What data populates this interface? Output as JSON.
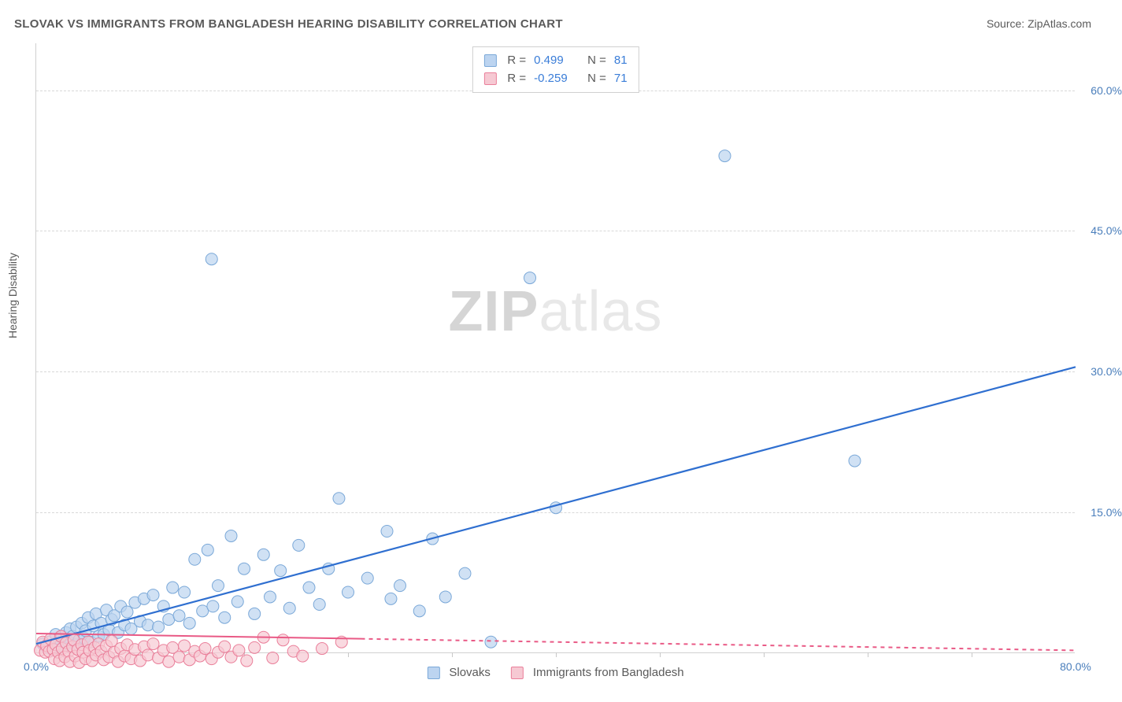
{
  "title": "SLOVAK VS IMMIGRANTS FROM BANGLADESH HEARING DISABILITY CORRELATION CHART",
  "source_prefix": "Source: ",
  "source_name": "ZipAtlas.com",
  "y_axis_label": "Hearing Disability",
  "watermark_bold": "ZIP",
  "watermark_light": "atlas",
  "chart": {
    "type": "scatter",
    "background_color": "#ffffff",
    "grid_color": "#d8d8d8",
    "border_color": "#d0d0d0",
    "xlim": [
      0,
      80
    ],
    "ylim": [
      0,
      65
    ],
    "x_ticks": [
      {
        "v": 0,
        "label": "0.0%"
      },
      {
        "v": 80,
        "label": "80.0%"
      }
    ],
    "x_minor_ticks": [
      8,
      16,
      24,
      32,
      40,
      48,
      56,
      64,
      72
    ],
    "y_ticks": [
      {
        "v": 15,
        "label": "15.0%"
      },
      {
        "v": 30,
        "label": "30.0%"
      },
      {
        "v": 45,
        "label": "45.0%"
      },
      {
        "v": 60,
        "label": "60.0%"
      }
    ],
    "tick_label_color": "#4a7ebb",
    "tick_fontsize": 14,
    "series": [
      {
        "key": "slovaks",
        "label": "Slovaks",
        "R": "0.499",
        "N": "81",
        "marker_fill": "#bcd4f0",
        "marker_stroke": "#7aa8d8",
        "marker_opacity": 0.7,
        "marker_radius": 7.5,
        "line_color": "#2f6fd0",
        "line_width": 2.2,
        "line_dash": "",
        "line_from": {
          "x": 0,
          "y": 1.0
        },
        "line_to": {
          "x": 80,
          "y": 30.5
        },
        "line_solid_until_x": 80,
        "points": [
          {
            "x": 0.5,
            "y": 1.0
          },
          {
            "x": 0.8,
            "y": 0.6
          },
          {
            "x": 1.0,
            "y": 1.2
          },
          {
            "x": 1.2,
            "y": 0.4
          },
          {
            "x": 1.4,
            "y": 1.0
          },
          {
            "x": 1.5,
            "y": 2.0
          },
          {
            "x": 1.7,
            "y": 0.8
          },
          {
            "x": 1.8,
            "y": 1.5
          },
          {
            "x": 2.0,
            "y": 1.8
          },
          {
            "x": 2.1,
            "y": 0.6
          },
          {
            "x": 2.3,
            "y": 2.2
          },
          {
            "x": 2.5,
            "y": 1.2
          },
          {
            "x": 2.6,
            "y": 2.6
          },
          {
            "x": 2.8,
            "y": 1.8
          },
          {
            "x": 3.0,
            "y": 0.9
          },
          {
            "x": 3.1,
            "y": 2.8
          },
          {
            "x": 3.3,
            "y": 1.4
          },
          {
            "x": 3.5,
            "y": 3.2
          },
          {
            "x": 3.7,
            "y": 1.6
          },
          {
            "x": 3.8,
            "y": 2.4
          },
          {
            "x": 4.0,
            "y": 3.8
          },
          {
            "x": 4.2,
            "y": 1.2
          },
          {
            "x": 4.4,
            "y": 2.9
          },
          {
            "x": 4.6,
            "y": 4.2
          },
          {
            "x": 4.8,
            "y": 1.8
          },
          {
            "x": 5.0,
            "y": 3.2
          },
          {
            "x": 5.2,
            "y": 2.0
          },
          {
            "x": 5.4,
            "y": 4.6
          },
          {
            "x": 5.6,
            "y": 2.5
          },
          {
            "x": 5.8,
            "y": 3.6
          },
          {
            "x": 6.0,
            "y": 4.0
          },
          {
            "x": 6.3,
            "y": 2.2
          },
          {
            "x": 6.5,
            "y": 5.0
          },
          {
            "x": 6.8,
            "y": 3.0
          },
          {
            "x": 7.0,
            "y": 4.4
          },
          {
            "x": 7.3,
            "y": 2.6
          },
          {
            "x": 7.6,
            "y": 5.4
          },
          {
            "x": 8.0,
            "y": 3.4
          },
          {
            "x": 8.3,
            "y": 5.8
          },
          {
            "x": 8.6,
            "y": 3.0
          },
          {
            "x": 9.0,
            "y": 6.2
          },
          {
            "x": 9.4,
            "y": 2.8
          },
          {
            "x": 9.8,
            "y": 5.0
          },
          {
            "x": 10.2,
            "y": 3.6
          },
          {
            "x": 10.5,
            "y": 7.0
          },
          {
            "x": 11.0,
            "y": 4.0
          },
          {
            "x": 11.4,
            "y": 6.5
          },
          {
            "x": 11.8,
            "y": 3.2
          },
          {
            "x": 12.2,
            "y": 10.0
          },
          {
            "x": 12.8,
            "y": 4.5
          },
          {
            "x": 13.2,
            "y": 11.0
          },
          {
            "x": 13.6,
            "y": 5.0
          },
          {
            "x": 14.0,
            "y": 7.2
          },
          {
            "x": 14.5,
            "y": 3.8
          },
          {
            "x": 15.0,
            "y": 12.5
          },
          {
            "x": 15.5,
            "y": 5.5
          },
          {
            "x": 16.0,
            "y": 9.0
          },
          {
            "x": 16.8,
            "y": 4.2
          },
          {
            "x": 17.5,
            "y": 10.5
          },
          {
            "x": 18.0,
            "y": 6.0
          },
          {
            "x": 18.8,
            "y": 8.8
          },
          {
            "x": 19.5,
            "y": 4.8
          },
          {
            "x": 20.2,
            "y": 11.5
          },
          {
            "x": 21.0,
            "y": 7.0
          },
          {
            "x": 21.8,
            "y": 5.2
          },
          {
            "x": 22.5,
            "y": 9.0
          },
          {
            "x": 23.3,
            "y": 16.5
          },
          {
            "x": 24.0,
            "y": 6.5
          },
          {
            "x": 25.5,
            "y": 8.0
          },
          {
            "x": 27.0,
            "y": 13.0
          },
          {
            "x": 27.3,
            "y": 5.8
          },
          {
            "x": 28.0,
            "y": 7.2
          },
          {
            "x": 29.5,
            "y": 4.5
          },
          {
            "x": 30.5,
            "y": 12.2
          },
          {
            "x": 31.5,
            "y": 6.0
          },
          {
            "x": 33.0,
            "y": 8.5
          },
          {
            "x": 35.0,
            "y": 1.2
          },
          {
            "x": 38.0,
            "y": 40.0
          },
          {
            "x": 40.0,
            "y": 15.5
          },
          {
            "x": 53.0,
            "y": 53.0
          },
          {
            "x": 63.0,
            "y": 20.5
          },
          {
            "x": 13.5,
            "y": 42.0
          }
        ]
      },
      {
        "key": "bangladesh",
        "label": "Immigrants from Bangladesh",
        "R": "-0.259",
        "N": "71",
        "marker_fill": "#f6c9d3",
        "marker_stroke": "#ea7f9a",
        "marker_opacity": 0.7,
        "marker_radius": 7.5,
        "line_color": "#e95a86",
        "line_width": 2.0,
        "line_dash": "5,5",
        "line_from": {
          "x": 0,
          "y": 2.1
        },
        "line_to": {
          "x": 80,
          "y": 0.3
        },
        "line_solid_until_x": 25,
        "points": [
          {
            "x": 0.3,
            "y": 0.3
          },
          {
            "x": 0.5,
            "y": 1.2
          },
          {
            "x": 0.7,
            "y": 0.1
          },
          {
            "x": 0.8,
            "y": 0.8
          },
          {
            "x": 1.0,
            "y": 0.2
          },
          {
            "x": 1.1,
            "y": 1.5
          },
          {
            "x": 1.3,
            "y": 0.4
          },
          {
            "x": 1.4,
            "y": -0.6
          },
          {
            "x": 1.5,
            "y": 0.9
          },
          {
            "x": 1.7,
            "y": 0.1
          },
          {
            "x": 1.8,
            "y": -0.8
          },
          {
            "x": 1.9,
            "y": 1.8
          },
          {
            "x": 2.0,
            "y": 0.5
          },
          {
            "x": 2.2,
            "y": -0.4
          },
          {
            "x": 2.3,
            "y": 1.1
          },
          {
            "x": 2.5,
            "y": 0.2
          },
          {
            "x": 2.6,
            "y": -0.9
          },
          {
            "x": 2.8,
            "y": 0.7
          },
          {
            "x": 2.9,
            "y": 1.4
          },
          {
            "x": 3.0,
            "y": -0.3
          },
          {
            "x": 3.2,
            "y": 0.4
          },
          {
            "x": 3.3,
            "y": -1.0
          },
          {
            "x": 3.5,
            "y": 0.9
          },
          {
            "x": 3.6,
            "y": 0.1
          },
          {
            "x": 3.8,
            "y": -0.6
          },
          {
            "x": 4.0,
            "y": 1.2
          },
          {
            "x": 4.1,
            "y": 0.3
          },
          {
            "x": 4.3,
            "y": -0.8
          },
          {
            "x": 4.5,
            "y": 0.6
          },
          {
            "x": 4.6,
            "y": -0.2
          },
          {
            "x": 4.8,
            "y": 1.0
          },
          {
            "x": 5.0,
            "y": 0.2
          },
          {
            "x": 5.2,
            "y": -0.7
          },
          {
            "x": 5.4,
            "y": 0.8
          },
          {
            "x": 5.6,
            "y": -0.4
          },
          {
            "x": 5.8,
            "y": 1.3
          },
          {
            "x": 6.0,
            "y": 0.1
          },
          {
            "x": 6.3,
            "y": -0.9
          },
          {
            "x": 6.5,
            "y": 0.5
          },
          {
            "x": 6.8,
            "y": -0.3
          },
          {
            "x": 7.0,
            "y": 0.9
          },
          {
            "x": 7.3,
            "y": -0.6
          },
          {
            "x": 7.6,
            "y": 0.4
          },
          {
            "x": 8.0,
            "y": -0.8
          },
          {
            "x": 8.3,
            "y": 0.7
          },
          {
            "x": 8.6,
            "y": -0.2
          },
          {
            "x": 9.0,
            "y": 1.0
          },
          {
            "x": 9.4,
            "y": -0.5
          },
          {
            "x": 9.8,
            "y": 0.3
          },
          {
            "x": 10.2,
            "y": -0.9
          },
          {
            "x": 10.5,
            "y": 0.6
          },
          {
            "x": 11.0,
            "y": -0.4
          },
          {
            "x": 11.4,
            "y": 0.8
          },
          {
            "x": 11.8,
            "y": -0.7
          },
          {
            "x": 12.2,
            "y": 0.2
          },
          {
            "x": 12.6,
            "y": -0.3
          },
          {
            "x": 13.0,
            "y": 0.5
          },
          {
            "x": 13.5,
            "y": -0.6
          },
          {
            "x": 14.0,
            "y": 0.1
          },
          {
            "x": 14.5,
            "y": 0.7
          },
          {
            "x": 15.0,
            "y": -0.4
          },
          {
            "x": 15.6,
            "y": 0.3
          },
          {
            "x": 16.2,
            "y": -0.8
          },
          {
            "x": 16.8,
            "y": 0.6
          },
          {
            "x": 17.5,
            "y": 1.7
          },
          {
            "x": 18.2,
            "y": -0.5
          },
          {
            "x": 19.0,
            "y": 1.4
          },
          {
            "x": 19.8,
            "y": 0.2
          },
          {
            "x": 20.5,
            "y": -0.3
          },
          {
            "x": 22.0,
            "y": 0.5
          },
          {
            "x": 23.5,
            "y": 1.2
          }
        ]
      }
    ],
    "legend_stats_labels": {
      "R": "R =",
      "N": "N ="
    },
    "legend_bottom": [
      {
        "series": "slovaks"
      },
      {
        "series": "bangladesh"
      }
    ]
  }
}
